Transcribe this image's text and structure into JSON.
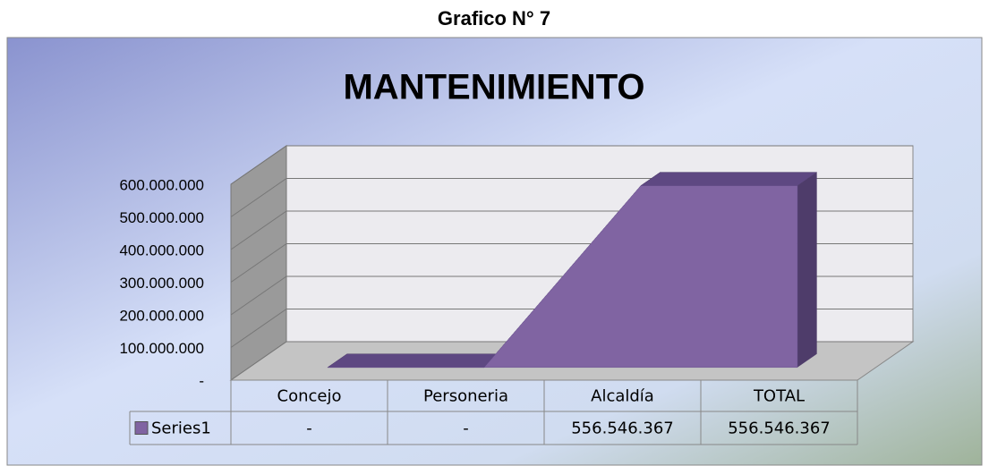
{
  "figure_label": "Grafico N° 7",
  "chart_data": {
    "type": "area",
    "title": "MANTENIMIENTO",
    "categories": [
      "Concejo",
      "Personeria",
      "Alcaldía",
      "TOTAL"
    ],
    "series": [
      {
        "name": "Series1",
        "color": "#8064a2",
        "values": [
          0,
          0,
          556546367,
          556546367
        ],
        "value_labels": [
          "-",
          "-",
          "556.546.367",
          "556.546.367"
        ]
      }
    ],
    "ylim": [
      0,
      600000000
    ],
    "yticks": [
      {
        "value": 0,
        "label": "-"
      },
      {
        "value": 100000000,
        "label": "100.000.000"
      },
      {
        "value": 200000000,
        "label": "200.000.000"
      },
      {
        "value": 300000000,
        "label": "300.000.000"
      },
      {
        "value": 400000000,
        "label": "400.000.000"
      },
      {
        "value": 500000000,
        "label": "500.000.000"
      },
      {
        "value": 600000000,
        "label": "600.000.000"
      }
    ],
    "grid": true,
    "legend": "table"
  }
}
